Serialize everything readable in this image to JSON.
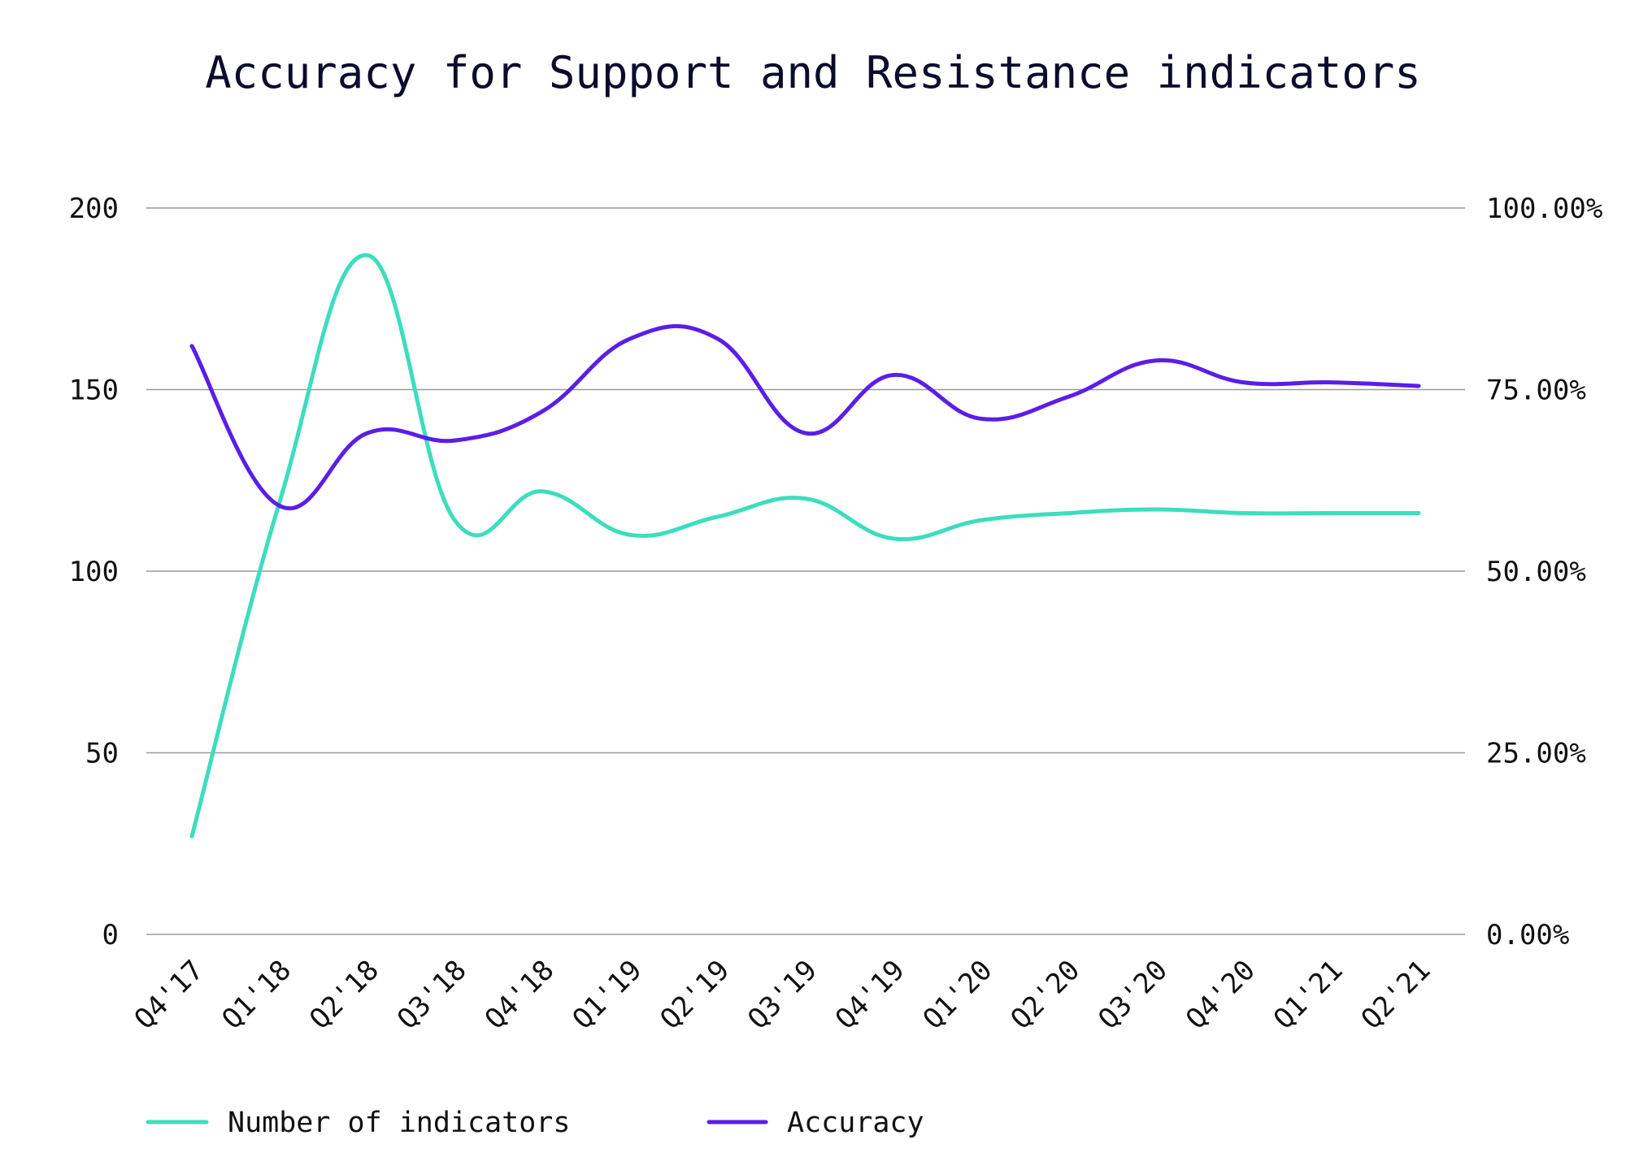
{
  "chart_data": {
    "type": "line",
    "title": "Accuracy for Support and Resistance indicators",
    "categories": [
      "Q4'17",
      "Q1'18",
      "Q2'18",
      "Q3'18",
      "Q4'18",
      "Q1'19",
      "Q2'19",
      "Q3'19",
      "Q4'19",
      "Q1'20",
      "Q2'20",
      "Q3'20",
      "Q4'20",
      "Q1'21",
      "Q2'21"
    ],
    "y_left": {
      "ylim": [
        0,
        200
      ],
      "ticks": [
        0,
        50,
        100,
        150,
        200
      ],
      "tick_labels": [
        "0",
        "50",
        "100",
        "150",
        "200"
      ]
    },
    "y_right": {
      "ylim": [
        0,
        1
      ],
      "ticks": [
        0,
        0.25,
        0.5,
        0.75,
        1.0
      ],
      "tick_labels": [
        "0.00%",
        "25.00%",
        "50.00%",
        "75.00%",
        "100.00%"
      ]
    },
    "grid": true,
    "legend_position": "bottom-left",
    "series": [
      {
        "name": "Number of indicators",
        "axis": "left",
        "color": "#3dddbe",
        "values": [
          27,
          119,
          187,
          114,
          122,
          110,
          115,
          120,
          109,
          114,
          116,
          117,
          116,
          116,
          116
        ]
      },
      {
        "name": "Accuracy",
        "axis": "right",
        "color": "#5b1ee8",
        "values": [
          0.81,
          0.59,
          0.69,
          0.68,
          0.72,
          0.82,
          0.82,
          0.69,
          0.77,
          0.71,
          0.74,
          0.79,
          0.76,
          0.76,
          0.755
        ]
      }
    ]
  }
}
